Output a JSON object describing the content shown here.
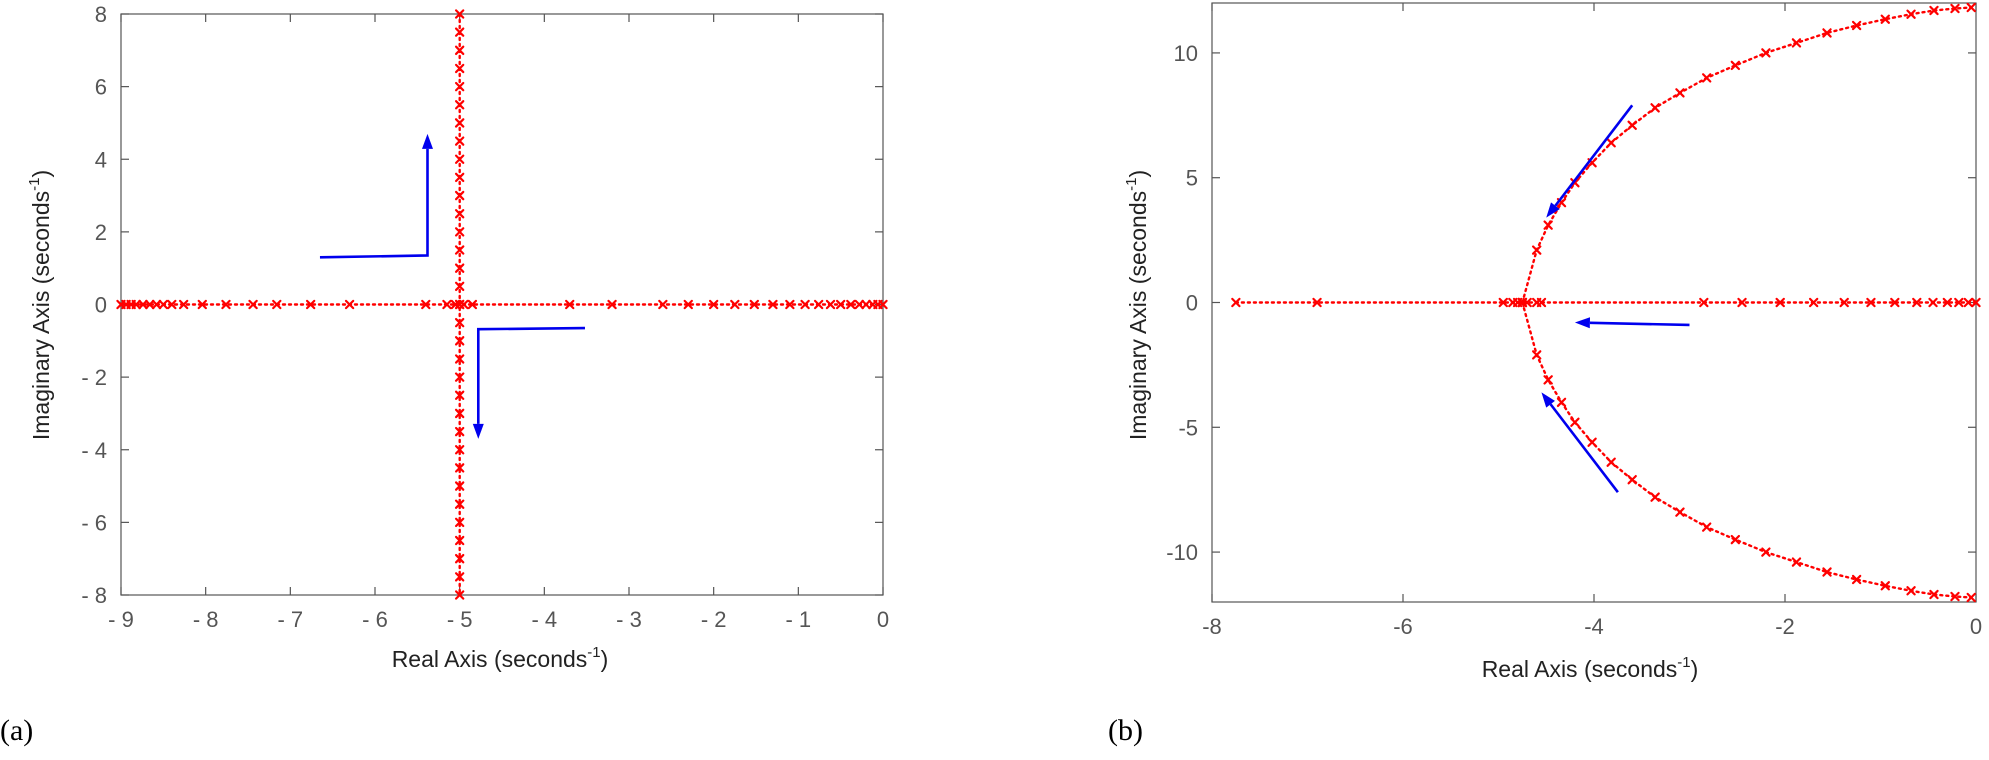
{
  "chart_data": [
    {
      "type": "scatter",
      "panel_label": "(a)",
      "xlabel": "Real Axis (seconds",
      "ylabel": "Imaginary Axis (seconds",
      "unit_exponent": "-1",
      "xlim": [
        -9,
        0
      ],
      "ylim": [
        -8,
        8
      ],
      "xtick_labels": [
        "- 9",
        "- 8",
        "- 7",
        "- 6",
        "- 5",
        "- 4",
        "- 3",
        "- 2",
        "- 1",
        "0"
      ],
      "ytick_labels": [
        "8",
        "6",
        "4",
        "2",
        "0",
        "- 2",
        "- 4",
        "- 6",
        "- 8"
      ],
      "grid": false,
      "line_color": "#ff0000",
      "arrow_color": "#0000ee",
      "series": [
        {
          "x": [
            -9,
            -8.94,
            -8.88,
            -8.82,
            -8.74,
            -8.66,
            -8.58,
            -8.5,
            -8.4,
            -8.26,
            -8.04,
            -7.76,
            -7.44,
            -7.16,
            -6.76,
            -6.3,
            -5.4,
            -5.15,
            -5.05,
            -5.0,
            -4.95,
            -4.85,
            -3.7,
            -3.2,
            -2.6,
            -2.3,
            -2.0,
            -1.75,
            -1.52,
            -1.3,
            -1.1,
            -0.92,
            -0.76,
            -0.62,
            -0.5,
            -0.38,
            -0.28,
            -0.2,
            -0.12,
            -0.06,
            0
          ],
          "y": [
            0,
            0,
            0,
            0,
            0,
            0,
            0,
            0,
            0,
            0,
            0,
            0,
            0,
            0,
            0,
            0,
            0,
            0,
            0,
            0,
            0,
            0,
            0,
            0,
            0,
            0,
            0,
            0,
            0,
            0,
            0,
            0,
            0,
            0,
            0,
            0,
            0,
            0,
            0,
            0,
            0
          ]
        },
        {
          "x": [
            -5,
            -5,
            -5,
            -5,
            -5,
            -5,
            -5,
            -5,
            -5,
            -5,
            -5,
            -5,
            -5,
            -5,
            -5,
            -5,
            -5,
            -5,
            -5,
            -5,
            -5,
            -5,
            -5,
            -5,
            -5,
            -5,
            -5,
            -5,
            -5,
            -5,
            -5,
            -5,
            -5
          ],
          "y": [
            8,
            7.5,
            7,
            6.5,
            6,
            5.5,
            5,
            4.5,
            4,
            3.5,
            3,
            2.5,
            2,
            1.5,
            1,
            0.5,
            0,
            -0.5,
            -1,
            -1.5,
            -2,
            -2.5,
            -3,
            -3.5,
            -4,
            -4.5,
            -5,
            -5.5,
            -6,
            -6.5,
            -7,
            -7.5,
            -8
          ]
        }
      ],
      "arrows": [
        {
          "path": [
            [
              -6.65,
              1.3
            ],
            [
              -5.38,
              1.35
            ],
            [
              -5.38,
              4.7
            ]
          ]
        },
        {
          "path": [
            [
              -3.52,
              -0.65
            ],
            [
              -4.78,
              -0.68
            ],
            [
              -4.78,
              -3.7
            ]
          ]
        }
      ]
    },
    {
      "type": "scatter",
      "panel_label": "(b)",
      "xlabel": "Real Axis (seconds",
      "ylabel": "Imaginary Axis (seconds",
      "unit_exponent": "-1",
      "xlim": [
        -8,
        0
      ],
      "ylim": [
        -12,
        12
      ],
      "xticks": [
        -8,
        -6,
        -4,
        -2,
        0
      ],
      "xtick_labels": [
        "-8",
        "-6",
        "-4",
        "-2",
        "0"
      ],
      "yticks": [
        10,
        5,
        0,
        -5,
        -10
      ],
      "ytick_labels": [
        "10",
        "5",
        "0",
        "-5",
        "-10"
      ],
      "grid": false,
      "line_color": "#ff0000",
      "arrow_color": "#0000ee",
      "series": [
        {
          "x": [
            -7.75,
            -6.9,
            -4.95,
            -4.85,
            -4.8,
            -4.75,
            -4.7,
            -4.6,
            -4.55,
            -2.85,
            -2.45,
            -2.05,
            -1.7,
            -1.38,
            -1.1,
            -0.85,
            -0.62,
            -0.45,
            -0.3,
            -0.18,
            -0.08,
            0
          ],
          "y": [
            0,
            0,
            0,
            0,
            0,
            0,
            0,
            0,
            0,
            0,
            0,
            0,
            0,
            0,
            0,
            0,
            0,
            0,
            0,
            0,
            0,
            0
          ]
        },
        {
          "x": [
            -4.75,
            -4.6,
            -4.48,
            -4.34,
            -4.2,
            -4.02,
            -3.82,
            -3.6,
            -3.36,
            -3.1,
            -2.82,
            -2.52,
            -2.2,
            -1.88,
            -1.56,
            -1.25,
            -0.95,
            -0.68,
            -0.44,
            -0.22,
            -0.05
          ],
          "y": [
            0,
            2.1,
            3.1,
            4.0,
            4.8,
            5.6,
            6.4,
            7.1,
            7.8,
            8.4,
            9.0,
            9.5,
            10.0,
            10.4,
            10.8,
            11.1,
            11.35,
            11.55,
            11.7,
            11.78,
            11.82
          ]
        },
        {
          "x": [
            -4.75,
            -4.6,
            -4.48,
            -4.34,
            -4.2,
            -4.02,
            -3.82,
            -3.6,
            -3.36,
            -3.1,
            -2.82,
            -2.52,
            -2.2,
            -1.88,
            -1.56,
            -1.25,
            -0.95,
            -0.68,
            -0.44,
            -0.22,
            -0.05
          ],
          "y": [
            0,
            -2.1,
            -3.1,
            -4.0,
            -4.8,
            -5.6,
            -6.4,
            -7.1,
            -7.8,
            -8.4,
            -9.0,
            -9.5,
            -10.0,
            -10.4,
            -10.8,
            -11.1,
            -11.35,
            -11.55,
            -11.7,
            -11.78,
            -11.82
          ]
        }
      ],
      "arrows": [
        {
          "path": [
            [
              -3.6,
              7.9
            ],
            [
              -4.5,
              3.4
            ]
          ]
        },
        {
          "path": [
            [
              -3.0,
              -0.9
            ],
            [
              -4.2,
              -0.8
            ]
          ]
        },
        {
          "path": [
            [
              -3.75,
              -7.6
            ],
            [
              -4.55,
              -3.6
            ]
          ]
        }
      ]
    }
  ]
}
